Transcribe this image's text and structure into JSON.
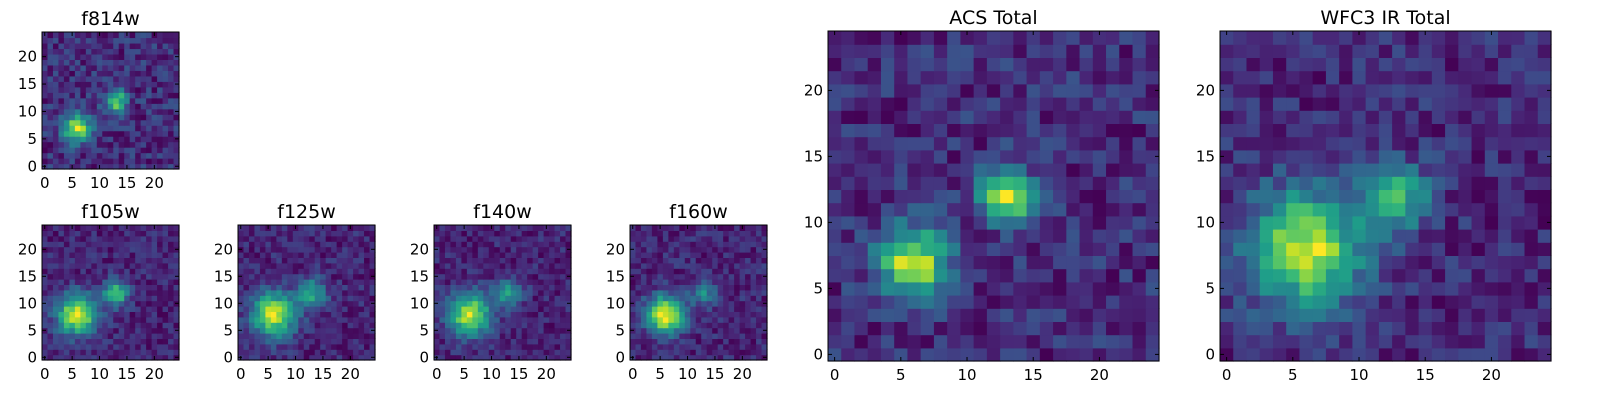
{
  "chart_data": [
    {
      "type": "heatmap",
      "title": "f814w",
      "xticks": [
        "0",
        "5",
        "10",
        "15",
        "20"
      ],
      "yticks": [
        "0",
        "5",
        "10",
        "15",
        "20"
      ],
      "xlim": [
        0,
        25
      ],
      "ylim": [
        0,
        25
      ],
      "colormap": "viridis",
      "sources": [
        {
          "x": 6,
          "y": 7,
          "amp": 1.0,
          "sigma": 1.8
        },
        {
          "x": 13,
          "y": 12,
          "amp": 0.9,
          "sigma": 1.4
        }
      ],
      "noise": 0.18
    },
    {
      "type": "heatmap",
      "title": "f105w",
      "xticks": [
        "0",
        "5",
        "10",
        "15",
        "20"
      ],
      "yticks": [
        "0",
        "5",
        "10",
        "15",
        "20"
      ],
      "xlim": [
        0,
        25
      ],
      "ylim": [
        0,
        25
      ],
      "colormap": "viridis",
      "sources": [
        {
          "x": 6,
          "y": 8,
          "amp": 1.0,
          "sigma": 2.6
        },
        {
          "x": 13,
          "y": 12,
          "amp": 0.75,
          "sigma": 1.6
        }
      ],
      "noise": 0.12
    },
    {
      "type": "heatmap",
      "title": "f125w",
      "xticks": [
        "0",
        "5",
        "10",
        "15",
        "20"
      ],
      "yticks": [
        "0",
        "5",
        "10",
        "15",
        "20"
      ],
      "xlim": [
        0,
        25
      ],
      "ylim": [
        0,
        25
      ],
      "colormap": "viridis",
      "sources": [
        {
          "x": 6,
          "y": 8,
          "amp": 1.0,
          "sigma": 2.8
        },
        {
          "x": 13,
          "y": 12,
          "amp": 0.6,
          "sigma": 1.8
        }
      ],
      "noise": 0.13
    },
    {
      "type": "heatmap",
      "title": "f140w",
      "xticks": [
        "0",
        "5",
        "10",
        "15",
        "20"
      ],
      "yticks": [
        "0",
        "5",
        "10",
        "15",
        "20"
      ],
      "xlim": [
        0,
        25
      ],
      "ylim": [
        0,
        25
      ],
      "colormap": "viridis",
      "sources": [
        {
          "x": 6,
          "y": 8,
          "amp": 1.0,
          "sigma": 2.7
        },
        {
          "x": 13,
          "y": 12,
          "amp": 0.5,
          "sigma": 1.8
        }
      ],
      "noise": 0.13
    },
    {
      "type": "heatmap",
      "title": "f160w",
      "xticks": [
        "0",
        "5",
        "10",
        "15",
        "20"
      ],
      "yticks": [
        "0",
        "5",
        "10",
        "15",
        "20"
      ],
      "xlim": [
        0,
        25
      ],
      "ylim": [
        0,
        25
      ],
      "colormap": "viridis",
      "sources": [
        {
          "x": 6,
          "y": 8,
          "amp": 1.0,
          "sigma": 2.4
        },
        {
          "x": 13,
          "y": 12,
          "amp": 0.4,
          "sigma": 1.6
        }
      ],
      "noise": 0.12
    },
    {
      "type": "heatmap",
      "title": "ACS Total",
      "xticks": [
        "0",
        "5",
        "10",
        "15",
        "20"
      ],
      "yticks": [
        "0",
        "5",
        "10",
        "15",
        "20"
      ],
      "xlim": [
        0,
        25
      ],
      "ylim": [
        0,
        25
      ],
      "colormap": "viridis",
      "sources": [
        {
          "x": 6,
          "y": 7,
          "amp": 1.0,
          "sigma": 1.8
        },
        {
          "x": 13,
          "y": 12,
          "amp": 0.95,
          "sigma": 1.4
        }
      ],
      "noise": 0.16
    },
    {
      "type": "heatmap",
      "title": "WFC3 IR Total",
      "xticks": [
        "0",
        "5",
        "10",
        "15",
        "20"
      ],
      "yticks": [
        "0",
        "5",
        "10",
        "15",
        "20"
      ],
      "xlim": [
        0,
        25
      ],
      "ylim": [
        0,
        25
      ],
      "colormap": "viridis",
      "sources": [
        {
          "x": 6,
          "y": 8,
          "amp": 1.0,
          "sigma": 3.0
        },
        {
          "x": 13,
          "y": 12,
          "amp": 0.65,
          "sigma": 1.7
        }
      ],
      "noise": 0.15
    }
  ]
}
